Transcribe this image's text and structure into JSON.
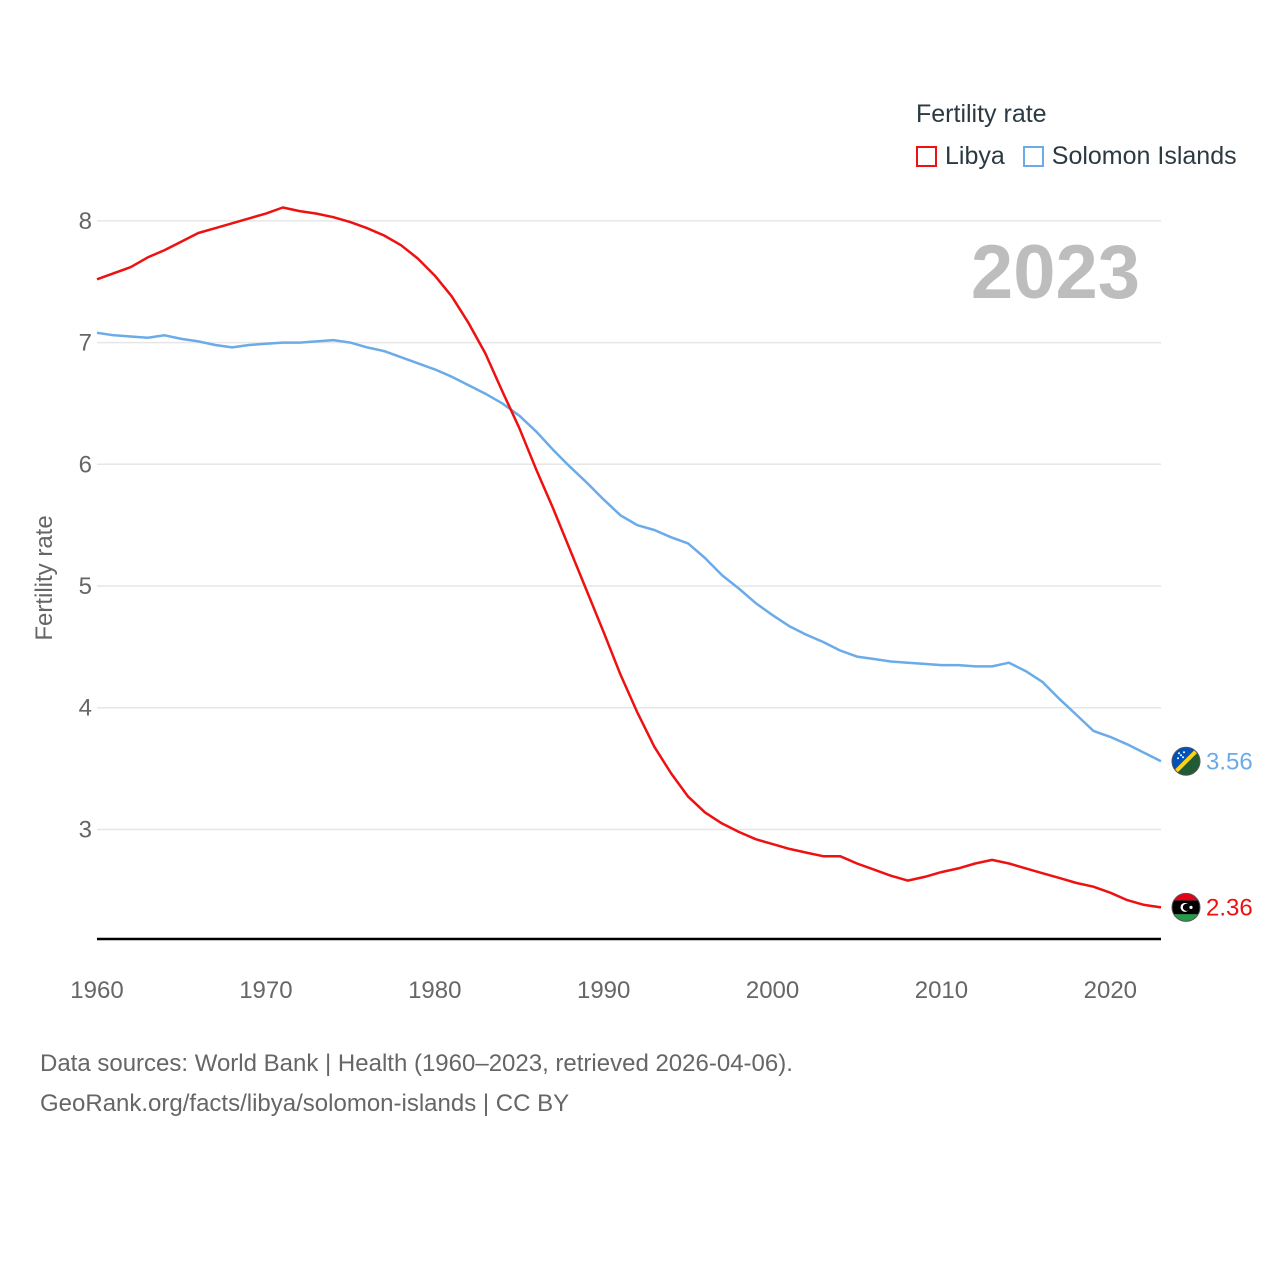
{
  "legend": {
    "title": "Fertility rate"
  },
  "footer": {
    "line1": "Data sources: World Bank | Health (1960–2023, retrieved 2026-04-06).",
    "line2": "GeoRank.org/facts/libya/solomon-islands | CC BY"
  },
  "chart_data": {
    "type": "line",
    "title": "",
    "year_label": "2023",
    "xlabel": "",
    "ylabel": "Fertility rate",
    "xlim": [
      1960,
      2023
    ],
    "ylim": [
      2.1,
      8.5
    ],
    "x_ticks": [
      1960,
      1970,
      1980,
      1990,
      2000,
      2010,
      2020
    ],
    "y_ticks": [
      3,
      4,
      5,
      6,
      7,
      8
    ],
    "grid": true,
    "legend_position": "top-right",
    "series": [
      {
        "name": "Libya",
        "color": "#ee1111",
        "end_label": "2.36",
        "flag_icon": "libya-flag-icon",
        "x": [
          1960,
          1961,
          1962,
          1963,
          1964,
          1965,
          1966,
          1967,
          1968,
          1969,
          1970,
          1971,
          1972,
          1973,
          1974,
          1975,
          1976,
          1977,
          1978,
          1979,
          1980,
          1981,
          1982,
          1983,
          1984,
          1985,
          1986,
          1987,
          1988,
          1989,
          1990,
          1991,
          1992,
          1993,
          1994,
          1995,
          1996,
          1997,
          1998,
          1999,
          2000,
          2001,
          2002,
          2003,
          2004,
          2005,
          2006,
          2007,
          2008,
          2009,
          2010,
          2011,
          2012,
          2013,
          2014,
          2015,
          2016,
          2017,
          2018,
          2019,
          2020,
          2021,
          2022,
          2023
        ],
        "values": [
          7.52,
          7.57,
          7.62,
          7.7,
          7.76,
          7.83,
          7.9,
          7.94,
          7.98,
          8.02,
          8.06,
          8.11,
          8.08,
          8.06,
          8.03,
          7.99,
          7.94,
          7.88,
          7.8,
          7.69,
          7.55,
          7.38,
          7.16,
          6.91,
          6.6,
          6.3,
          5.96,
          5.64,
          5.3,
          4.96,
          4.62,
          4.27,
          3.96,
          3.68,
          3.46,
          3.27,
          3.14,
          3.05,
          2.98,
          2.92,
          2.88,
          2.84,
          2.81,
          2.78,
          2.78,
          2.72,
          2.67,
          2.62,
          2.58,
          2.61,
          2.65,
          2.68,
          2.72,
          2.75,
          2.72,
          2.68,
          2.64,
          2.6,
          2.56,
          2.53,
          2.48,
          2.42,
          2.38,
          2.36
        ]
      },
      {
        "name": "Solomon Islands",
        "color": "#6aabe8",
        "end_label": "3.56",
        "flag_icon": "solomon-islands-flag-icon",
        "x": [
          1960,
          1961,
          1962,
          1963,
          1964,
          1965,
          1966,
          1967,
          1968,
          1969,
          1970,
          1971,
          1972,
          1973,
          1974,
          1975,
          1976,
          1977,
          1978,
          1979,
          1980,
          1981,
          1982,
          1983,
          1984,
          1985,
          1986,
          1987,
          1988,
          1989,
          1990,
          1991,
          1992,
          1993,
          1994,
          1995,
          1996,
          1997,
          1998,
          1999,
          2000,
          2001,
          2002,
          2003,
          2004,
          2005,
          2006,
          2007,
          2008,
          2009,
          2010,
          2011,
          2012,
          2013,
          2014,
          2015,
          2016,
          2017,
          2018,
          2019,
          2020,
          2021,
          2022,
          2023
        ],
        "values": [
          7.08,
          7.06,
          7.05,
          7.04,
          7.06,
          7.03,
          7.01,
          6.98,
          6.96,
          6.98,
          6.99,
          7.0,
          7.0,
          7.01,
          7.02,
          7.0,
          6.96,
          6.93,
          6.88,
          6.83,
          6.78,
          6.72,
          6.65,
          6.58,
          6.5,
          6.4,
          6.27,
          6.12,
          5.98,
          5.85,
          5.71,
          5.58,
          5.5,
          5.46,
          5.4,
          5.35,
          5.23,
          5.09,
          4.98,
          4.86,
          4.76,
          4.67,
          4.6,
          4.54,
          4.47,
          4.42,
          4.4,
          4.38,
          4.37,
          4.36,
          4.35,
          4.35,
          4.34,
          4.34,
          4.37,
          4.3,
          4.21,
          4.07,
          3.94,
          3.81,
          3.76,
          3.7,
          3.63,
          3.56
        ]
      }
    ]
  }
}
